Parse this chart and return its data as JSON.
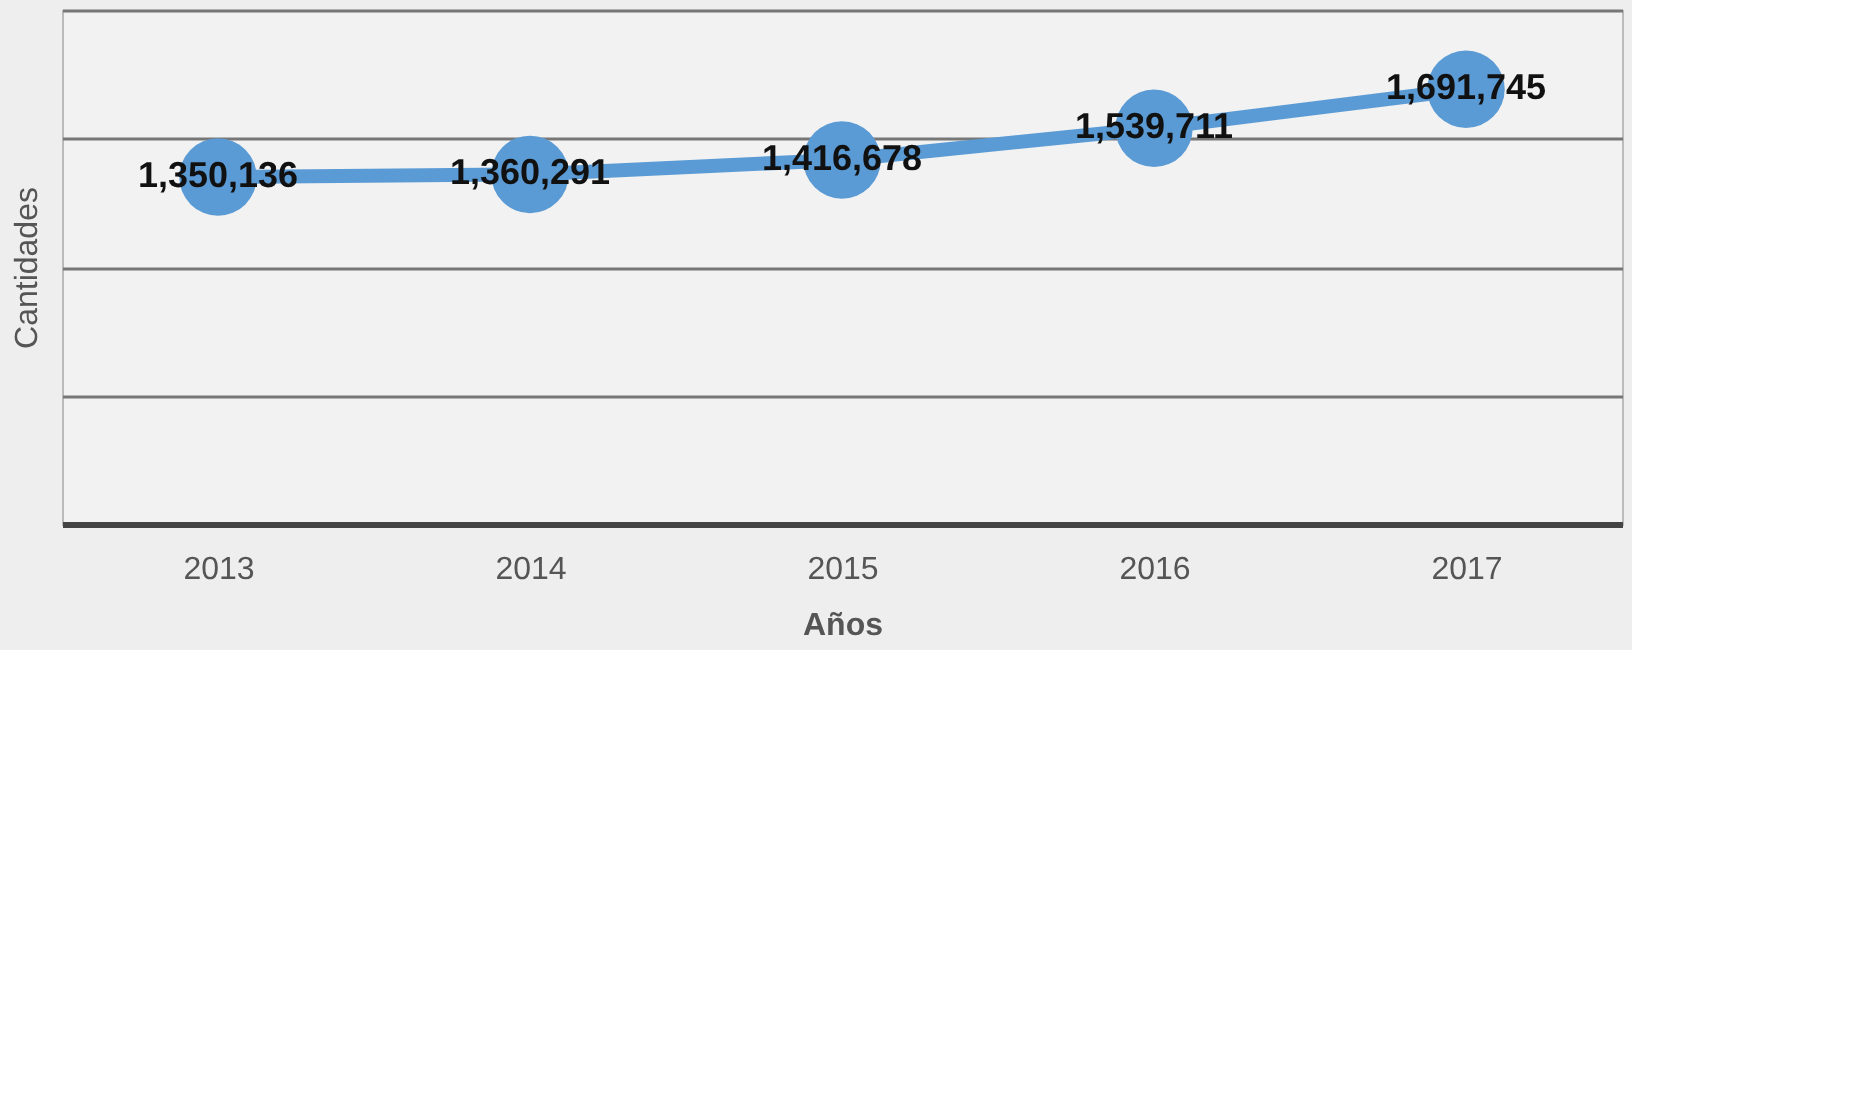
{
  "chart_data": {
    "type": "line",
    "xlabel": "Años",
    "ylabel": "Cantidades",
    "categories": [
      "2013",
      "2014",
      "2015",
      "2016",
      "2017"
    ],
    "series": [
      {
        "color": "#5b9bd5",
        "values": [
          1350136,
          1360291,
          1416678,
          1539711,
          1691745
        ],
        "value_labels": [
          "1,350,136",
          "1,360,291",
          "1,416,678",
          "1,539,711",
          "1,691,745"
        ]
      }
    ],
    "ylim": [
      0,
      2000000
    ],
    "yticks": [
      {
        "value": 0,
        "label": null
      },
      {
        "value": 500000,
        "label": null
      },
      {
        "value": 1000000,
        "label": null
      },
      {
        "value": 1500000,
        "label": null
      },
      {
        "value": 2000000,
        "label": null
      }
    ],
    "tick_labels": "x",
    "grid": "y",
    "marker": "circle",
    "line_style": "solid"
  }
}
